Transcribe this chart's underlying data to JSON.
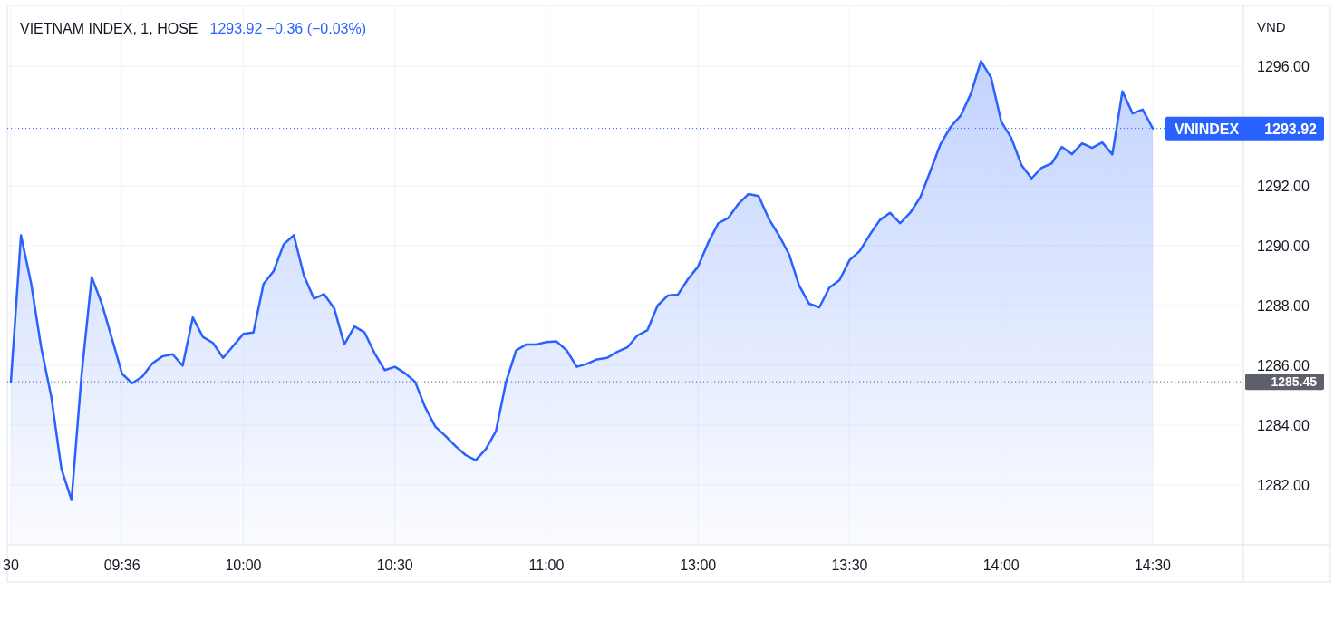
{
  "chart_data": {
    "type": "area",
    "title": "VIETNAM INDEX, 1, HOSE",
    "subtitle": "1293.92 −0.36 (−0.03%)",
    "ylabel": "VND",
    "categories": [
      "30",
      null,
      null,
      null,
      null,
      null,
      null,
      null,
      null,
      null,
      null,
      "09:36",
      null,
      null,
      null,
      null,
      null,
      null,
      null,
      null,
      null,
      null,
      null,
      "10:00",
      null,
      null,
      null,
      null,
      null,
      null,
      null,
      null,
      null,
      null,
      null,
      null,
      null,
      null,
      "10:30",
      null,
      null,
      null,
      null,
      null,
      null,
      null,
      null,
      null,
      null,
      null,
      null,
      null,
      null,
      "11:00",
      null,
      null,
      null,
      null,
      null,
      null,
      null,
      null,
      null,
      null,
      null,
      null,
      null,
      null,
      "13:00",
      null,
      null,
      null,
      null,
      null,
      null,
      null,
      null,
      null,
      null,
      null,
      null,
      null,
      null,
      "13:30",
      null,
      null,
      null,
      null,
      null,
      null,
      null,
      null,
      null,
      null,
      null,
      null,
      null,
      null,
      "14:00",
      null,
      null,
      null,
      null,
      null,
      null,
      null,
      null,
      null,
      null,
      null,
      null,
      null,
      null,
      "14:30"
    ],
    "values": [
      1285.45,
      1290.35,
      1288.75,
      1286.6,
      1284.95,
      1282.54,
      1281.5,
      1285.7,
      1288.95,
      1288.06,
      1286.9,
      1285.72,
      1285.4,
      1285.62,
      1286.07,
      1286.3,
      1286.37,
      1285.99,
      1287.6,
      1286.95,
      1286.75,
      1286.25,
      1286.65,
      1287.05,
      1287.1,
      1288.72,
      1289.15,
      1290.05,
      1290.35,
      1289.0,
      1288.23,
      1288.38,
      1287.9,
      1286.7,
      1287.3,
      1287.1,
      1286.4,
      1285.84,
      1285.95,
      1285.74,
      1285.45,
      1284.6,
      1283.95,
      1283.64,
      1283.3,
      1283.0,
      1282.83,
      1283.2,
      1283.8,
      1285.45,
      1286.5,
      1286.7,
      1286.7,
      1286.78,
      1286.8,
      1286.5,
      1285.95,
      1286.05,
      1286.2,
      1286.25,
      1286.45,
      1286.6,
      1287.0,
      1287.18,
      1288.0,
      1288.33,
      1288.36,
      1288.88,
      1289.3,
      1290.1,
      1290.75,
      1290.93,
      1291.4,
      1291.73,
      1291.66,
      1290.9,
      1290.35,
      1289.72,
      1288.67,
      1288.06,
      1287.94,
      1288.6,
      1288.85,
      1289.52,
      1289.82,
      1290.37,
      1290.86,
      1291.1,
      1290.75,
      1291.1,
      1291.62,
      1292.5,
      1293.4,
      1293.97,
      1294.35,
      1295.08,
      1296.17,
      1295.62,
      1294.15,
      1293.6,
      1292.7,
      1292.25,
      1292.6,
      1292.75,
      1293.3,
      1293.06,
      1293.42,
      1293.27,
      1293.45,
      1293.05,
      1295.16,
      1294.42,
      1294.55,
      1293.92
    ],
    "color": "#2962ff",
    "ylim": [
      1280,
      1298
    ],
    "yticks": [
      {
        "value": 1282,
        "label": "1282.00"
      },
      {
        "value": 1284,
        "label": "1284.00"
      },
      {
        "value": 1286,
        "label": "1286.00"
      },
      {
        "value": 1288,
        "label": "1288.00"
      },
      {
        "value": 1290,
        "label": "1290.00"
      },
      {
        "value": 1292,
        "label": "1292.00"
      },
      {
        "value": 1296,
        "label": "1296.00"
      }
    ],
    "grid": true,
    "ref_lines": [
      {
        "axis": "y",
        "value": 1293.92,
        "label": "VNINDEX 1293.92",
        "color": "#2962ff",
        "line_style": "dotted"
      },
      {
        "axis": "y",
        "value": 1285.45,
        "label": "1285.45",
        "color": "#5d606b",
        "line_style": "dotted"
      }
    ]
  }
}
